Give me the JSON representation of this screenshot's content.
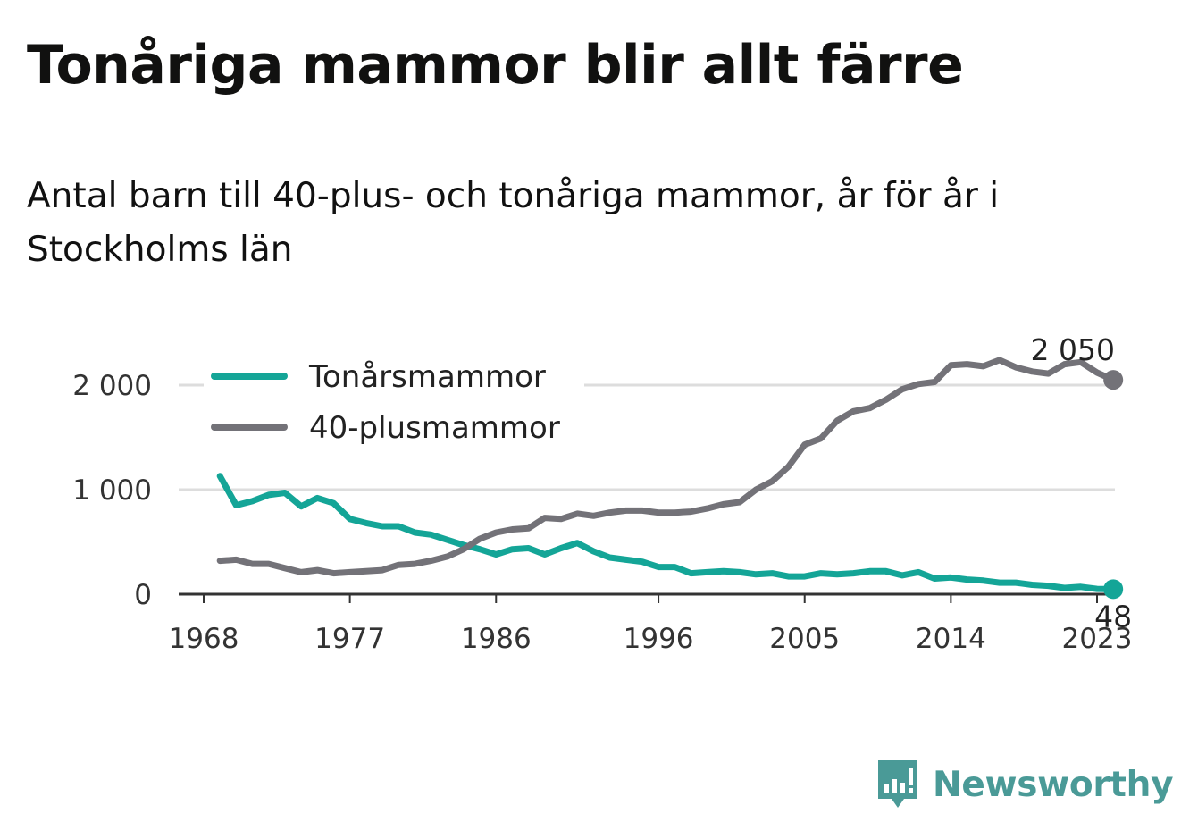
{
  "title": "Tonåriga mammor blir allt färre",
  "subtitle": "Antal barn till 40-plus- och tonåriga mammor, år för år i Stockholms län",
  "brand": {
    "name": "Newsworthy",
    "icon": "newsworthy-logo-icon",
    "color": "#4a9a97"
  },
  "chart_data": {
    "type": "line",
    "x_ticks": [
      1968,
      1977,
      1986,
      1996,
      2005,
      2014,
      2023
    ],
    "y_ticks": [
      0,
      1000,
      2000
    ],
    "y_tick_labels": [
      "0",
      "1 000",
      "2 000"
    ],
    "ylim": [
      0,
      2350
    ],
    "xlim": [
      1967,
      2026
    ],
    "grid": true,
    "legend_position": "top-left",
    "x": [
      1969,
      1970,
      1971,
      1972,
      1973,
      1974,
      1975,
      1976,
      1977,
      1978,
      1979,
      1980,
      1981,
      1982,
      1983,
      1984,
      1985,
      1986,
      1987,
      1988,
      1989,
      1990,
      1991,
      1992,
      1993,
      1994,
      1995,
      1996,
      1997,
      1998,
      1999,
      2000,
      2001,
      2002,
      2003,
      2004,
      2005,
      2006,
      2007,
      2008,
      2009,
      2010,
      2011,
      2012,
      2013,
      2014,
      2015,
      2016,
      2017,
      2018,
      2019,
      2020,
      2021,
      2022,
      2023,
      2024
    ],
    "series": [
      {
        "name": "Tonårsmammor",
        "color": "#14a597",
        "end_label": "48",
        "values": [
          1130,
          850,
          890,
          950,
          970,
          840,
          920,
          870,
          720,
          680,
          650,
          650,
          590,
          570,
          520,
          470,
          430,
          380,
          430,
          440,
          380,
          440,
          490,
          410,
          350,
          330,
          310,
          260,
          260,
          200,
          210,
          220,
          210,
          190,
          200,
          170,
          170,
          200,
          190,
          200,
          220,
          220,
          180,
          210,
          150,
          160,
          140,
          130,
          110,
          110,
          90,
          80,
          60,
          70,
          50,
          48
        ]
      },
      {
        "name": "40-plusmammor",
        "color": "#737278",
        "end_label": "2 050",
        "values": [
          320,
          330,
          290,
          290,
          250,
          210,
          230,
          200,
          210,
          220,
          230,
          280,
          290,
          320,
          360,
          430,
          530,
          590,
          620,
          630,
          730,
          720,
          770,
          750,
          780,
          800,
          800,
          780,
          780,
          790,
          820,
          860,
          880,
          1000,
          1080,
          1220,
          1430,
          1490,
          1660,
          1750,
          1780,
          1860,
          1960,
          2010,
          2030,
          2190,
          2200,
          2180,
          2240,
          2170,
          2130,
          2110,
          2200,
          2220,
          2120,
          2050
        ]
      }
    ]
  }
}
